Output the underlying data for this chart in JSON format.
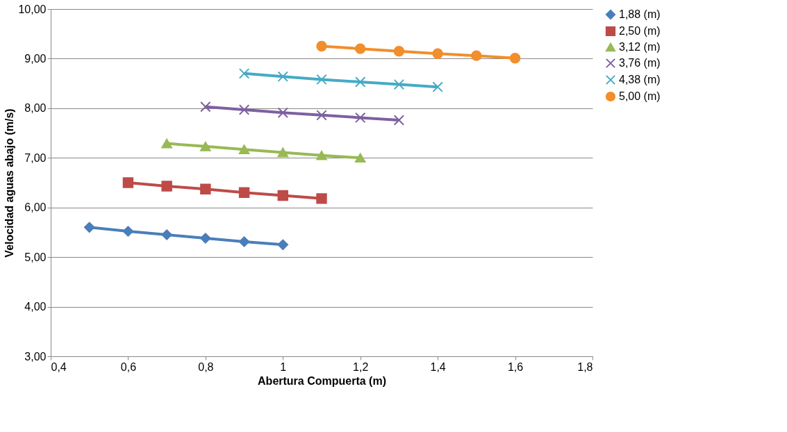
{
  "chart_data": {
    "type": "line",
    "xlabel": "Abertura Compuerta (m)",
    "ylabel": "Velocidad aguas abajo (m/s)",
    "xlim": [
      0.4,
      1.8
    ],
    "ylim": [
      3,
      10
    ],
    "xticks": [
      {
        "value": 0.4,
        "label": "0,4"
      },
      {
        "value": 0.6,
        "label": "0,6"
      },
      {
        "value": 0.8,
        "label": "0,8"
      },
      1,
      {
        "value": 1.2,
        "label": "1,2"
      },
      {
        "value": 1.4,
        "label": "1,4"
      },
      {
        "value": 1.6,
        "label": "1,6"
      },
      {
        "value": 1.8,
        "label": "1,8"
      }
    ],
    "yticks": [
      {
        "value": 3,
        "label": "3,00"
      },
      {
        "value": 4,
        "label": "4,00"
      },
      {
        "value": 5,
        "label": "5,00"
      },
      {
        "value": 6,
        "label": "6,00"
      },
      {
        "value": 7,
        "label": "7,00"
      },
      {
        "value": 8,
        "label": "8,00"
      },
      {
        "value": 9,
        "label": "9,00"
      },
      {
        "value": 10,
        "label": "10,00"
      }
    ],
    "grid": "y",
    "legend": "right",
    "line_style": "solid",
    "series": [
      {
        "name": "1,88 (m)",
        "color": "#4a7ebb",
        "marker": "diamond",
        "x": [
          0.5,
          0.6,
          0.7,
          0.8,
          0.9,
          1.0
        ],
        "values": [
          5.6,
          5.52,
          5.45,
          5.38,
          5.31,
          5.25
        ]
      },
      {
        "name": "2,50 (m)",
        "color": "#be4b48",
        "marker": "square",
        "x": [
          0.6,
          0.7,
          0.8,
          0.9,
          1.0,
          1.1
        ],
        "values": [
          6.5,
          6.43,
          6.37,
          6.3,
          6.24,
          6.18
        ]
      },
      {
        "name": "3,12 (m)",
        "color": "#98b954",
        "marker": "triangle",
        "x": [
          0.7,
          0.8,
          0.9,
          1.0,
          1.1,
          1.2
        ],
        "values": [
          7.29,
          7.23,
          7.17,
          7.11,
          7.05,
          7.0
        ]
      },
      {
        "name": "3,76 (m)",
        "color": "#7d60a0",
        "marker": "cross",
        "x": [
          0.8,
          0.9,
          1.0,
          1.1,
          1.2,
          1.3
        ],
        "values": [
          8.03,
          7.97,
          7.91,
          7.86,
          7.81,
          7.76
        ]
      },
      {
        "name": "4,38 (m)",
        "color": "#46aac5",
        "marker": "cross",
        "x": [
          0.9,
          1.0,
          1.1,
          1.2,
          1.3,
          1.4
        ],
        "values": [
          8.7,
          8.64,
          8.58,
          8.53,
          8.48,
          8.43
        ]
      },
      {
        "name": "5,00 (m)",
        "color": "#f28e2b",
        "marker": "circle",
        "x": [
          1.1,
          1.2,
          1.3,
          1.4,
          1.5,
          1.6
        ],
        "values": [
          9.25,
          9.2,
          9.15,
          9.1,
          9.06,
          9.01
        ]
      }
    ]
  }
}
